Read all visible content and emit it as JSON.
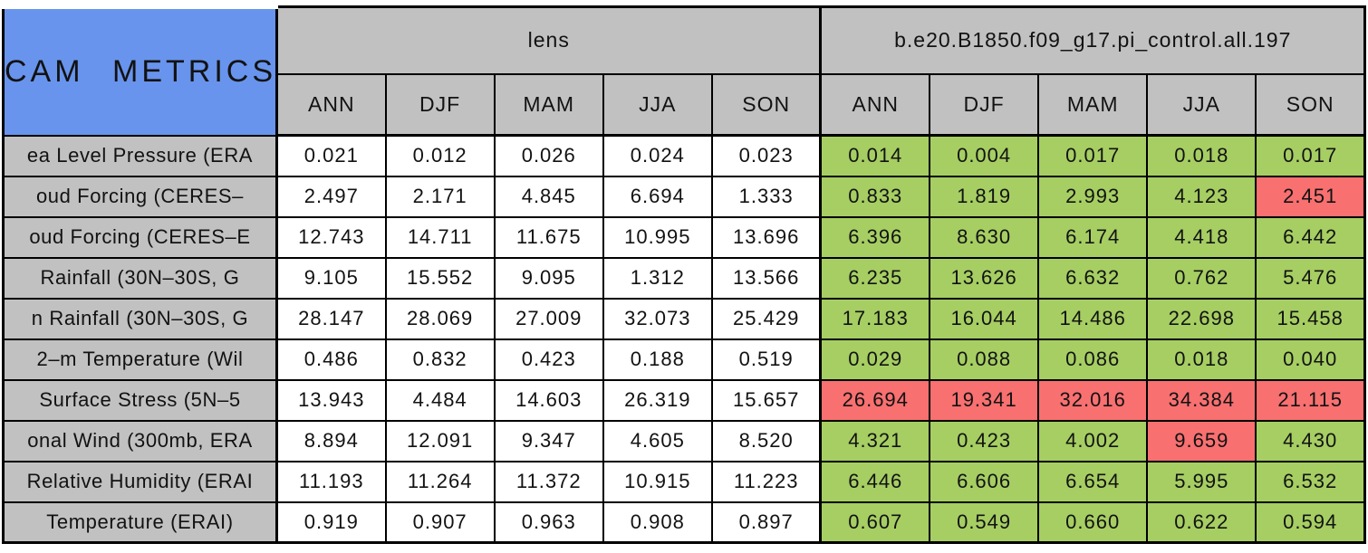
{
  "colors": {
    "blue": "#6894ED",
    "gray": "#C1C1C1",
    "green": "#A6CE63",
    "red": "#F87070"
  },
  "chart_data": {
    "type": "table",
    "title": "CAM METRICS",
    "column_groups": [
      "lens",
      "b.e20.B1850.f09_g17.pi_control.all.197"
    ],
    "seasons": [
      "ANN",
      "DJF",
      "MAM",
      "JJA",
      "SON"
    ],
    "cell_color_legend": {
      "g": "green",
      "r": "red",
      "w": "white"
    },
    "rows": [
      {
        "label": "ea Level Pressure (ERA",
        "lens": [
          "0.021",
          "0.012",
          "0.026",
          "0.024",
          "0.023"
        ],
        "model": [
          "0.014",
          "0.004",
          "0.017",
          "0.018",
          "0.017"
        ],
        "model_flags": [
          "g",
          "g",
          "g",
          "g",
          "g"
        ]
      },
      {
        "label": "oud Forcing (CERES–",
        "lens": [
          "2.497",
          "2.171",
          "4.845",
          "6.694",
          "1.333"
        ],
        "model": [
          "0.833",
          "1.819",
          "2.993",
          "4.123",
          "2.451"
        ],
        "model_flags": [
          "g",
          "g",
          "g",
          "g",
          "r"
        ]
      },
      {
        "label": "oud Forcing (CERES–E",
        "lens": [
          "12.743",
          "14.711",
          "11.675",
          "10.995",
          "13.696"
        ],
        "model": [
          "6.396",
          "8.630",
          "6.174",
          "4.418",
          "6.442"
        ],
        "model_flags": [
          "g",
          "g",
          "g",
          "g",
          "g"
        ]
      },
      {
        "label": "Rainfall (30N–30S, G",
        "lens": [
          "9.105",
          "15.552",
          "9.095",
          "1.312",
          "13.566"
        ],
        "model": [
          "6.235",
          "13.626",
          "6.632",
          "0.762",
          "5.476"
        ],
        "model_flags": [
          "g",
          "g",
          "g",
          "g",
          "g"
        ]
      },
      {
        "label": "n Rainfall (30N–30S, G",
        "lens": [
          "28.147",
          "28.069",
          "27.009",
          "32.073",
          "25.429"
        ],
        "model": [
          "17.183",
          "16.044",
          "14.486",
          "22.698",
          "15.458"
        ],
        "model_flags": [
          "g",
          "g",
          "g",
          "g",
          "g"
        ]
      },
      {
        "label": "2–m Temperature (Wil",
        "lens": [
          "0.486",
          "0.832",
          "0.423",
          "0.188",
          "0.519"
        ],
        "model": [
          "0.029",
          "0.088",
          "0.086",
          "0.018",
          "0.040"
        ],
        "model_flags": [
          "g",
          "g",
          "g",
          "g",
          "g"
        ]
      },
      {
        "label": "Surface Stress (5N–5",
        "lens": [
          "13.943",
          "4.484",
          "14.603",
          "26.319",
          "15.657"
        ],
        "model": [
          "26.694",
          "19.341",
          "32.016",
          "34.384",
          "21.115"
        ],
        "model_flags": [
          "r",
          "r",
          "r",
          "r",
          "r"
        ]
      },
      {
        "label": "onal Wind (300mb, ERA",
        "lens": [
          "8.894",
          "12.091",
          "9.347",
          "4.605",
          "8.520"
        ],
        "model": [
          "4.321",
          "0.423",
          "4.002",
          "9.659",
          "4.430"
        ],
        "model_flags": [
          "g",
          "g",
          "g",
          "r",
          "g"
        ]
      },
      {
        "label": "Relative Humidity (ERAI",
        "lens": [
          "11.193",
          "11.264",
          "11.372",
          "10.915",
          "11.223"
        ],
        "model": [
          "6.446",
          "6.606",
          "6.654",
          "5.995",
          "6.532"
        ],
        "model_flags": [
          "g",
          "g",
          "g",
          "g",
          "g"
        ]
      },
      {
        "label": "Temperature (ERAI)",
        "lens": [
          "0.919",
          "0.907",
          "0.963",
          "0.908",
          "0.897"
        ],
        "model": [
          "0.607",
          "0.549",
          "0.660",
          "0.622",
          "0.594"
        ],
        "model_flags": [
          "g",
          "g",
          "g",
          "g",
          "g"
        ]
      }
    ]
  }
}
